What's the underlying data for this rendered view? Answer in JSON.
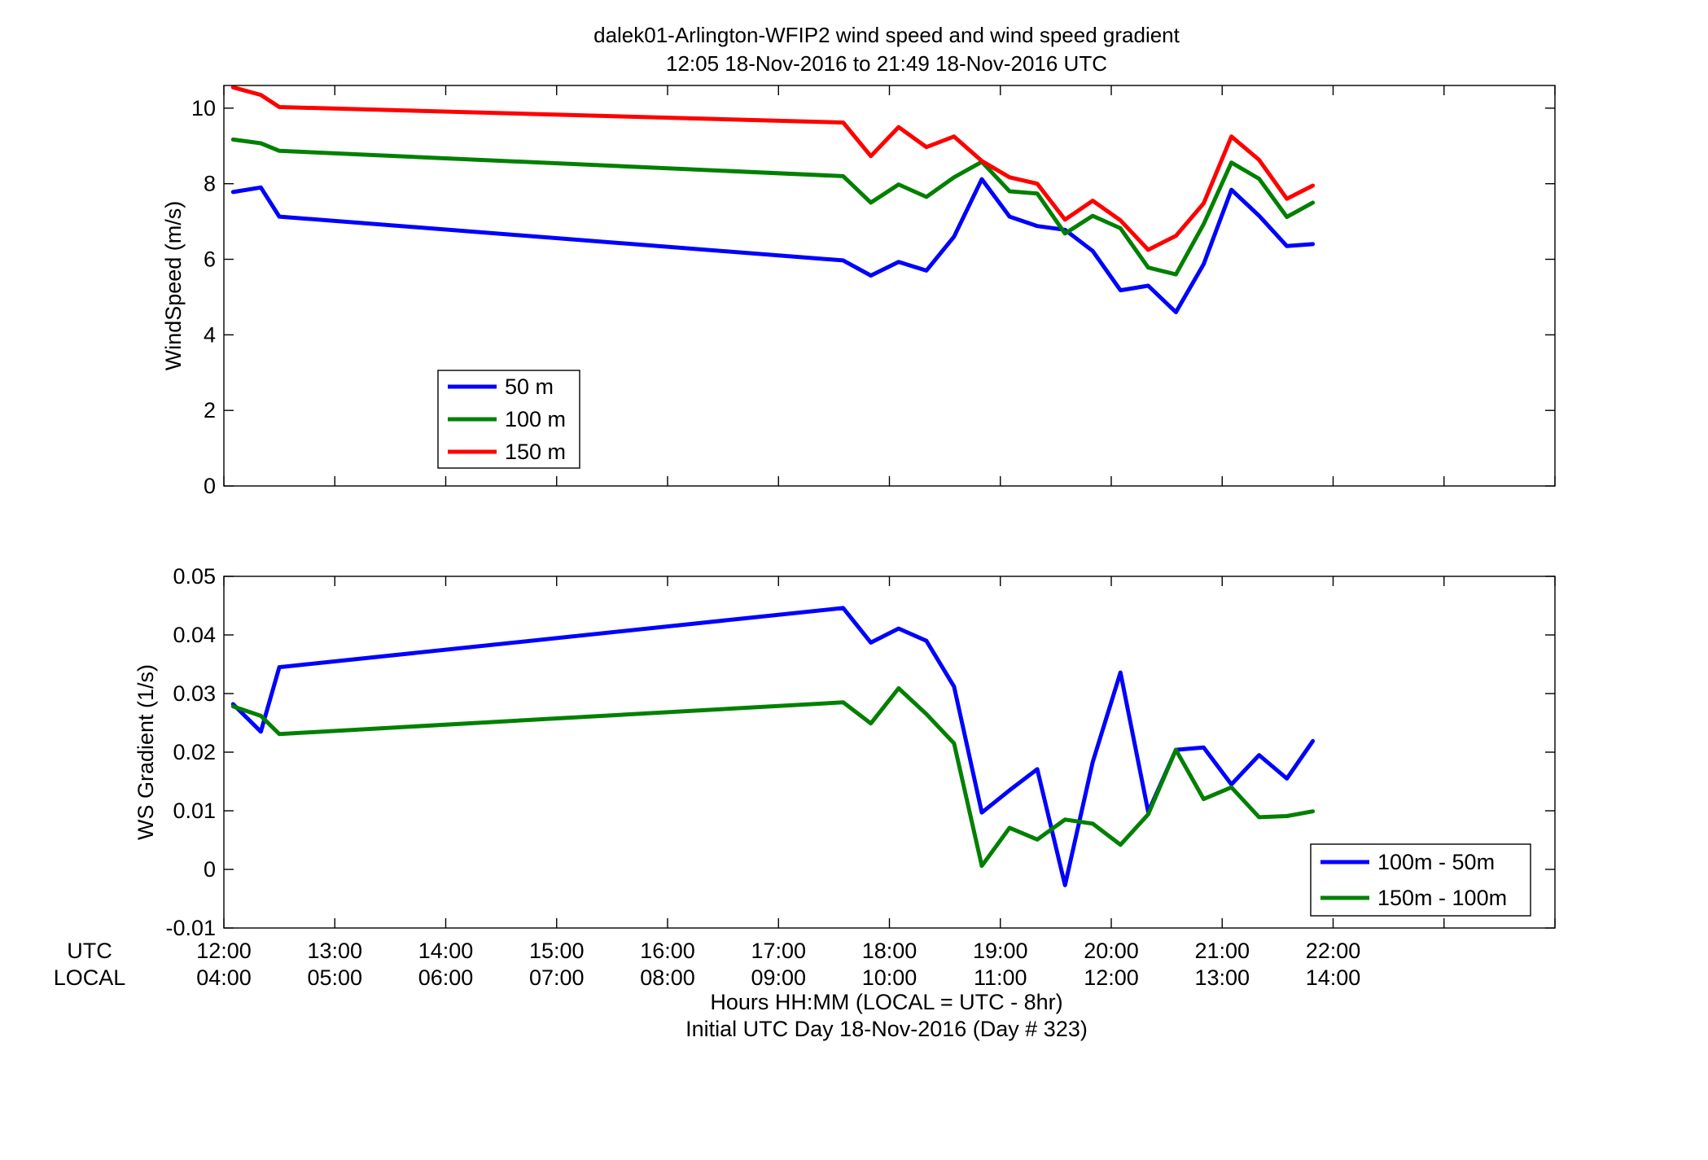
{
  "figure": {
    "title_line1": "dalek01-Arlington-WFIP2  wind speed and wind speed gradient",
    "title_line2": "12:05 18-Nov-2016 to 21:49 18-Nov-2016  UTC",
    "xlabel_line1": "Hours HH:MM  (LOCAL = UTC - 8hr)",
    "xlabel_line2": "Initial UTC Day 18-Nov-2016 (Day # 323)",
    "utc_row_label": "UTC",
    "local_row_label": "LOCAL",
    "utc_ticks": [
      "12:00",
      "13:00",
      "14:00",
      "15:00",
      "16:00",
      "17:00",
      "18:00",
      "19:00",
      "20:00",
      "21:00",
      "22:00"
    ],
    "local_ticks": [
      "04:00",
      "05:00",
      "06:00",
      "07:00",
      "08:00",
      "09:00",
      "10:00",
      "11:00",
      "12:00",
      "13:00",
      "14:00"
    ]
  },
  "chart_data": [
    {
      "type": "line",
      "ylabel": "WindSpeed (m/s)",
      "xlim": [
        12.0,
        24.0
      ],
      "ylim": [
        0,
        10.6
      ],
      "yticks": [
        0,
        2,
        4,
        6,
        8,
        10
      ],
      "ytick_labels": [
        "0",
        "2",
        "4",
        "6",
        "8",
        "10"
      ],
      "xticks": [
        12,
        13,
        14,
        15,
        16,
        17,
        18,
        19,
        20,
        21,
        22,
        23,
        24
      ],
      "legend_position": "lower-left",
      "x": [
        12.083,
        12.333,
        12.5,
        17.583,
        17.833,
        18.083,
        18.333,
        18.583,
        18.833,
        19.083,
        19.333,
        19.583,
        19.833,
        20.083,
        20.333,
        20.583,
        20.833,
        21.083,
        21.333,
        21.583,
        21.817
      ],
      "series": [
        {
          "name": "50 m",
          "color": "#0000ff",
          "values": [
            7.78,
            7.9,
            7.13,
            5.97,
            5.57,
            5.93,
            5.7,
            6.6,
            8.12,
            7.13,
            6.88,
            6.78,
            6.22,
            5.18,
            5.3,
            4.6,
            5.87,
            7.84,
            7.15,
            6.35,
            6.4
          ]
        },
        {
          "name": "100 m",
          "color": "#008000",
          "values": [
            9.17,
            9.07,
            8.87,
            8.2,
            7.5,
            7.98,
            7.65,
            8.17,
            8.58,
            7.8,
            7.74,
            6.68,
            7.15,
            6.82,
            5.78,
            5.6,
            6.93,
            8.56,
            8.13,
            7.12,
            7.5
          ]
        },
        {
          "name": "150 m",
          "color": "#ff0000",
          "values": [
            10.55,
            10.35,
            10.03,
            9.62,
            8.73,
            9.5,
            8.97,
            9.25,
            8.6,
            8.17,
            8.0,
            7.05,
            7.55,
            7.03,
            6.25,
            6.62,
            7.48,
            9.25,
            8.63,
            7.6,
            7.95
          ]
        }
      ]
    },
    {
      "type": "line",
      "ylabel": "WS Gradient (1/s)",
      "xlim": [
        12.0,
        24.0
      ],
      "ylim": [
        -0.01,
        0.05
      ],
      "yticks": [
        -0.01,
        0,
        0.01,
        0.02,
        0.03,
        0.04,
        0.05
      ],
      "ytick_labels": [
        "-0.01",
        "0",
        "0.01",
        "0.02",
        "0.03",
        "0.04",
        "0.05"
      ],
      "xticks": [
        12,
        13,
        14,
        15,
        16,
        17,
        18,
        19,
        20,
        21,
        22,
        23,
        24
      ],
      "legend_position": "lower-right",
      "x": [
        12.083,
        12.333,
        12.5,
        17.583,
        17.833,
        18.083,
        18.333,
        18.583,
        18.833,
        19.083,
        19.333,
        19.583,
        19.833,
        20.083,
        20.333,
        20.583,
        20.833,
        21.083,
        21.333,
        21.583,
        21.817
      ],
      "series": [
        {
          "name": "100m - 50m",
          "color": "#0000ff",
          "values": [
            0.0282,
            0.0235,
            0.0345,
            0.0446,
            0.0387,
            0.0411,
            0.039,
            0.0312,
            0.0097,
            0.0135,
            0.0171,
            -0.0027,
            0.0183,
            0.0336,
            0.0098,
            0.0204,
            0.0208,
            0.0145,
            0.0195,
            0.0155,
            0.0219
          ]
        },
        {
          "name": "150m - 100m",
          "color": "#008000",
          "values": [
            0.0278,
            0.0262,
            0.0231,
            0.0285,
            0.0249,
            0.0309,
            0.0265,
            0.0215,
            0.0006,
            0.0071,
            0.0051,
            0.0085,
            0.0078,
            0.0042,
            0.0094,
            0.0204,
            0.012,
            0.014,
            0.0089,
            0.0091,
            0.0099
          ]
        }
      ]
    }
  ]
}
